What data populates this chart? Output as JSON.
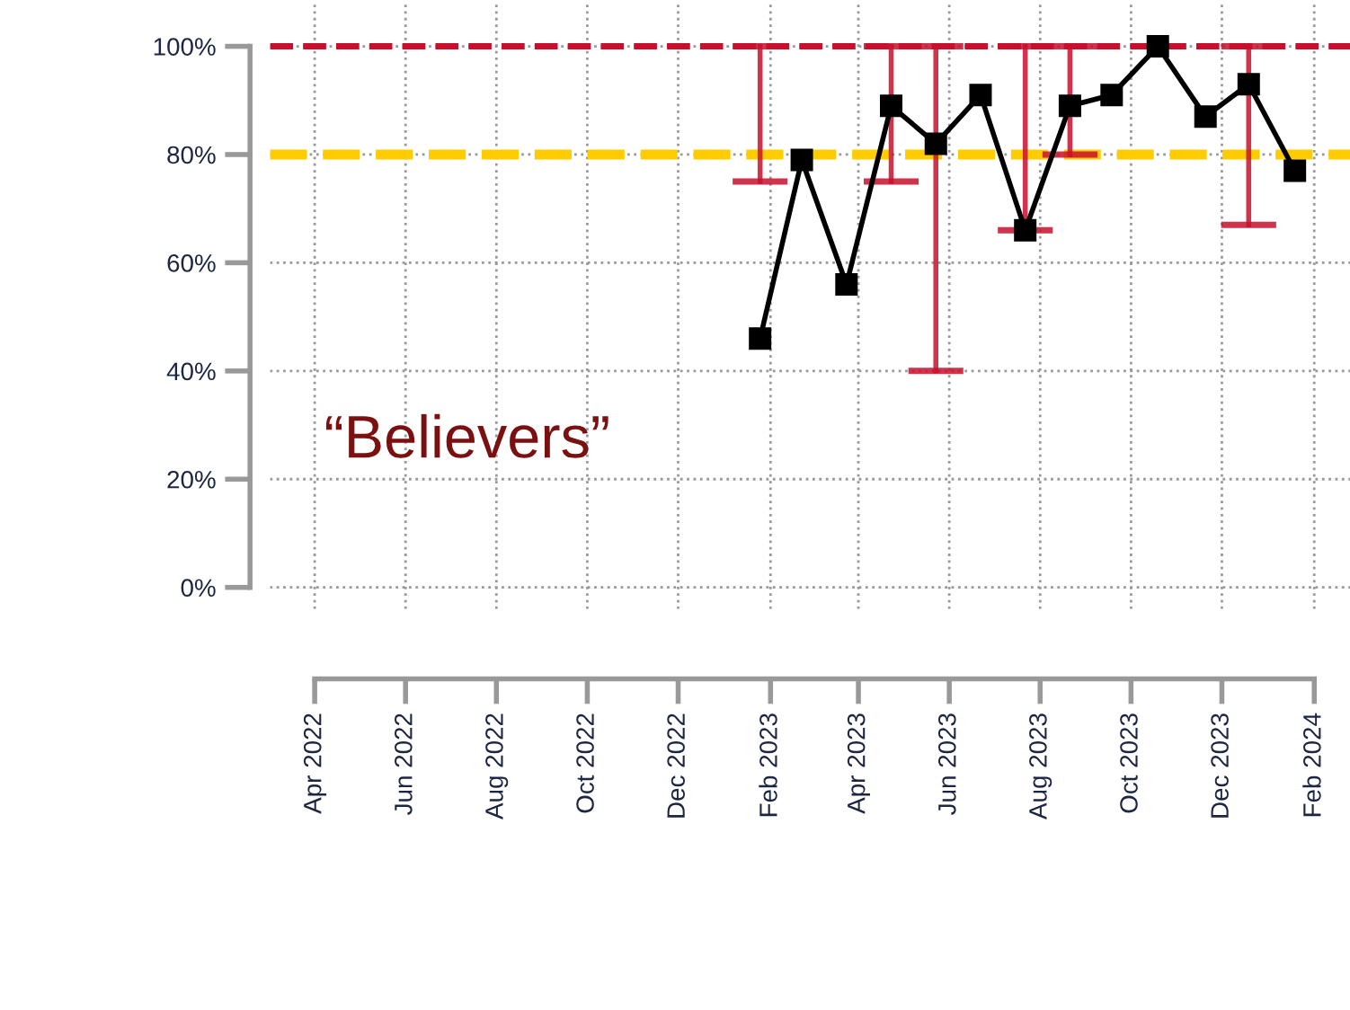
{
  "chart_data": {
    "type": "line",
    "x": [
      "2023-01-25",
      "2023-02-22",
      "2023-03-24",
      "2023-04-23",
      "2023-05-23",
      "2023-06-22",
      "2023-07-22",
      "2023-08-21",
      "2023-09-18",
      "2023-10-19",
      "2023-11-20",
      "2023-12-19",
      "2024-01-19"
    ],
    "series": [
      {
        "color": "#000000",
        "values": [
          46,
          79,
          56,
          89,
          82,
          91,
          66,
          89,
          91,
          100,
          87,
          93,
          77
        ],
        "errors": [
          [
            75,
            100
          ],
          null,
          null,
          [
            75,
            100
          ],
          [
            40,
            100
          ],
          null,
          [
            66,
            100
          ],
          [
            80,
            100
          ],
          null,
          null,
          null,
          [
            67,
            100
          ],
          null
        ]
      }
    ],
    "marker": "square",
    "line_style": "solid",
    "xlim": [
      "2022-03-02",
      "2024-02-25"
    ],
    "xticks": [
      {
        "value": "2022-04",
        "label": "Apr 2022"
      },
      {
        "value": "2022-06",
        "label": "Jun 2022"
      },
      {
        "value": "2022-08",
        "label": "Aug 2022"
      },
      {
        "value": "2022-10",
        "label": "Oct 2022"
      },
      {
        "value": "2022-12",
        "label": "Dec 2022"
      },
      {
        "value": "2023-02",
        "label": "Feb 2023"
      },
      {
        "value": "2023-04",
        "label": "Apr 2023"
      },
      {
        "value": "2023-06",
        "label": "Jun 2023"
      },
      {
        "value": "2023-08",
        "label": "Aug 2023"
      },
      {
        "value": "2023-10",
        "label": "Oct 2023"
      },
      {
        "value": "2023-12",
        "label": "Dec 2023"
      },
      {
        "value": "2024-02",
        "label": "Feb 2024"
      }
    ],
    "ylim": [
      -4,
      108
    ],
    "yticks": [
      {
        "value": 0,
        "label": "0%"
      },
      {
        "value": 20,
        "label": "20%"
      },
      {
        "value": 40,
        "label": "40%"
      },
      {
        "value": 60,
        "label": "60%"
      },
      {
        "value": 80,
        "label": "80%"
      },
      {
        "value": 100,
        "label": "100%"
      }
    ],
    "ref_lines": [
      {
        "axis": "y",
        "value": 80,
        "color": "#ffcc00",
        "line_style": "dashed"
      },
      {
        "axis": "y",
        "value": 100,
        "color": "#c8102e",
        "line_style": "dashed"
      }
    ],
    "grid": true,
    "annotations": [
      "“Believers”"
    ]
  }
}
